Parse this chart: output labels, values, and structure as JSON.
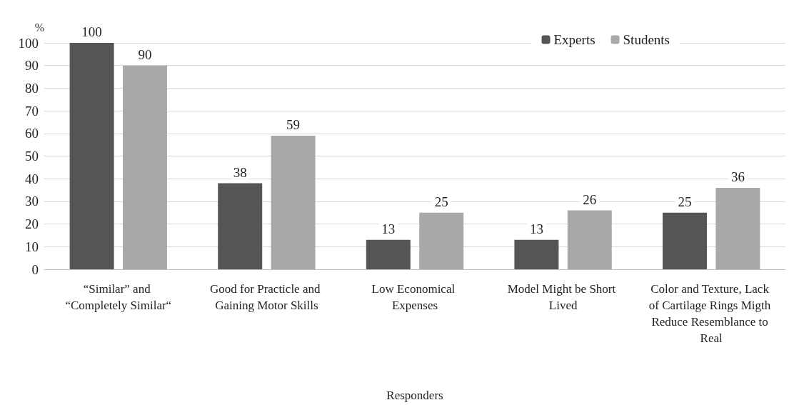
{
  "chart_data": {
    "type": "bar",
    "ylabel": "%",
    "xlabel": "Responders",
    "categories": [
      "“Similar” and “Completely Similar“",
      "Good for Practicle and Gaining Motor Skills",
      "Low Economical Expenses",
      "Model Might be Short Lived",
      "Color and Texture, Lack of Cartilage Rings Migth Reduce Resemblance to Real"
    ],
    "series": [
      {
        "name": "Experts",
        "color": "#555555",
        "values": [
          100,
          38,
          13,
          13,
          25
        ]
      },
      {
        "name": "Students",
        "color": "#a9a9a9",
        "values": [
          90,
          59,
          25,
          26,
          36
        ]
      }
    ],
    "ylim": [
      0,
      100
    ],
    "yticks": [
      0,
      10,
      20,
      30,
      40,
      50,
      60,
      70,
      80,
      90,
      100
    ],
    "grid": "y",
    "legend": "top right",
    "data_labels": true
  }
}
